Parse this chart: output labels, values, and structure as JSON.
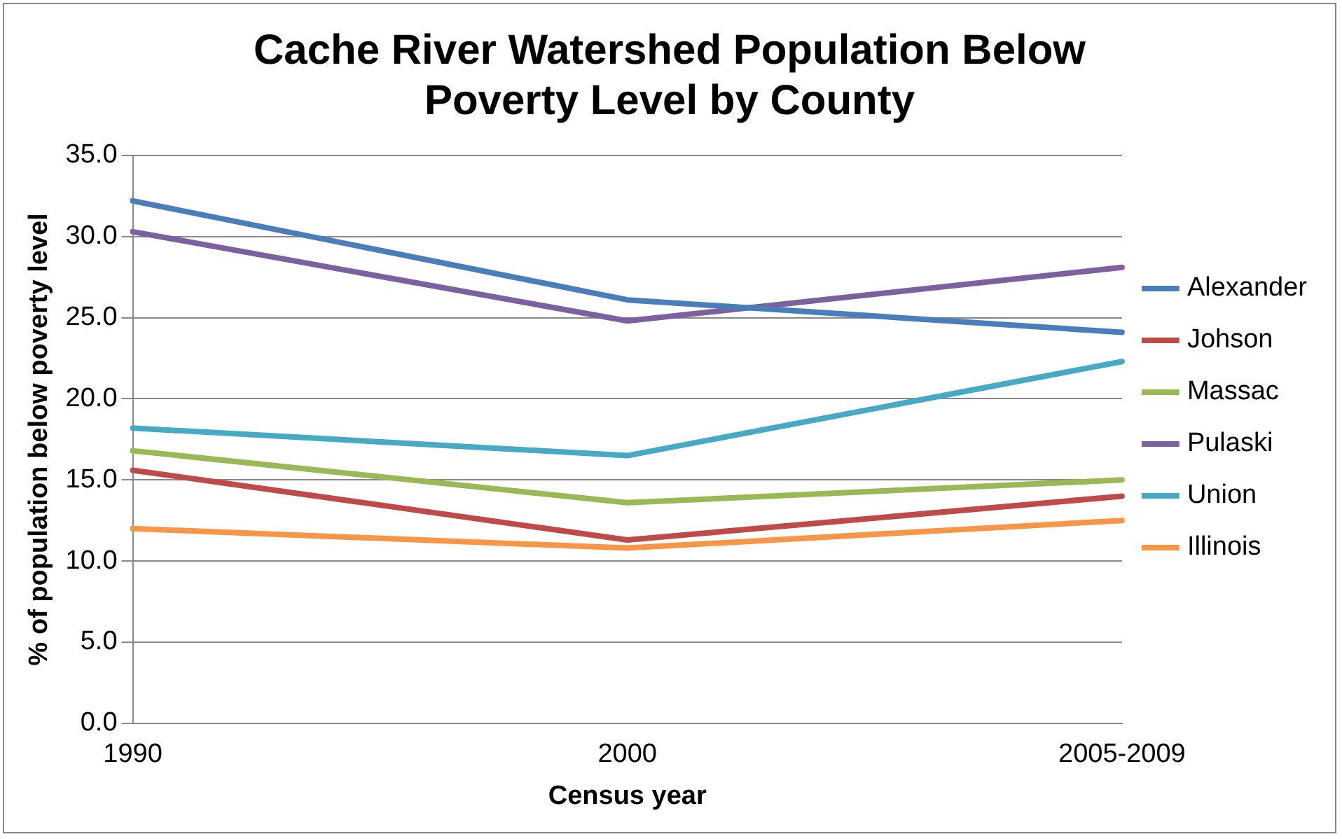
{
  "chart_data": {
    "type": "line",
    "title": "Cache River Watershed Population Below Poverty Level by County",
    "xlabel": "Census year",
    "ylabel": "% of population below poverty level",
    "categories": [
      "1990",
      "2000",
      "2005-2009"
    ],
    "series": [
      {
        "name": "Alexander",
        "color": "#4a7ebb",
        "values": [
          32.2,
          26.1,
          24.1
        ]
      },
      {
        "name": "Johson",
        "color": "#be4b48",
        "values": [
          15.6,
          11.3,
          14.0
        ]
      },
      {
        "name": "Massac",
        "color": "#98b954",
        "values": [
          16.8,
          13.6,
          15.0
        ]
      },
      {
        "name": "Pulaski",
        "color": "#7d60a0",
        "values": [
          30.3,
          24.8,
          28.1
        ]
      },
      {
        "name": "Union",
        "color": "#46aac5",
        "values": [
          18.2,
          16.5,
          22.3
        ]
      },
      {
        "name": "Illinois",
        "color": "#f79646",
        "values": [
          12.0,
          10.8,
          12.5
        ]
      }
    ],
    "ylim": [
      0,
      35
    ],
    "yticks": [
      {
        "value": 0,
        "label": "0.0"
      },
      {
        "value": 5,
        "label": "5.0"
      },
      {
        "value": 10,
        "label": "10.0"
      },
      {
        "value": 15,
        "label": "15.0"
      },
      {
        "value": 20,
        "label": "20.0"
      },
      {
        "value": 25,
        "label": "25.0"
      },
      {
        "value": 30,
        "label": "30.0"
      },
      {
        "value": 35,
        "label": "35.0"
      }
    ],
    "grid": "y",
    "legend": "right",
    "marker": "none",
    "line_style": "solid"
  }
}
